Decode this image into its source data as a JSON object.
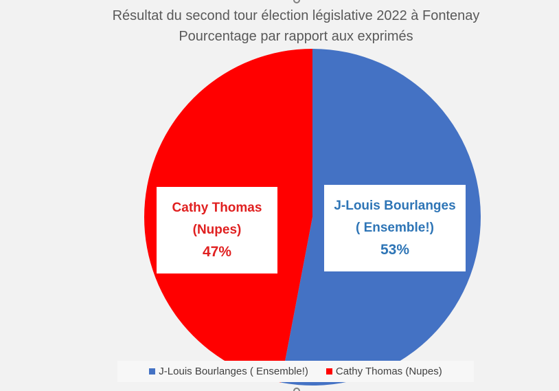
{
  "chart_data": {
    "type": "pie",
    "title": "Résultat du second tour élection législative 2022 à Fontenay",
    "subtitle": "Pourcentage par rapport aux exprimés",
    "slices": [
      {
        "name": "J-Louis Bourlanges ( Ensemble!)",
        "label_line1": "J-Louis Bourlanges",
        "label_line2": "( Ensemble!)",
        "value": 53,
        "value_label": "53%",
        "color": "#4472c4",
        "label_color": "#2e75b6"
      },
      {
        "name": "Cathy Thomas (Nupes)",
        "label_line1": "Cathy Thomas",
        "label_line2": "(Nupes)",
        "value": 47,
        "value_label": "47%",
        "color": "#ff0000",
        "label_color": "#e02020"
      }
    ],
    "legend_position": "bottom"
  }
}
